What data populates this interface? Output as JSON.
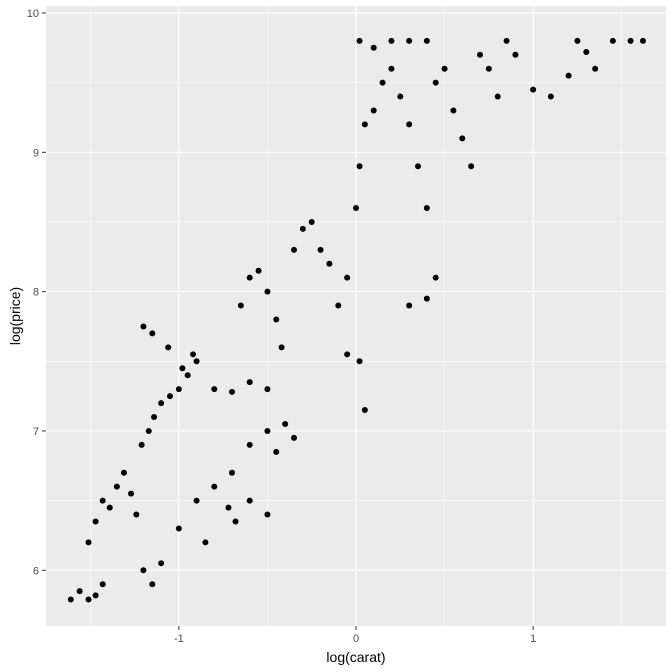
{
  "chart_data": {
    "type": "scatter",
    "title": "",
    "xlabel": "log(carat)",
    "ylabel": "log(price)",
    "xlim": [
      -1.75,
      1.75
    ],
    "ylim": [
      5.6,
      10.05
    ],
    "x_ticks": [
      -1,
      0,
      1
    ],
    "x_tick_labels": [
      "-1",
      "0",
      "1"
    ],
    "y_ticks": [
      6,
      7,
      8,
      9,
      10
    ],
    "y_tick_labels": [
      "6",
      "7",
      "8",
      "9",
      "10"
    ],
    "grid": true,
    "colors": {
      "panel": "#EBEBEB",
      "grid": "#FFFFFF",
      "point": "#000000"
    },
    "series": [
      {
        "points": [
          [
            -1.61,
            5.79
          ],
          [
            -1.56,
            5.85
          ],
          [
            -1.51,
            5.79
          ],
          [
            -1.47,
            5.82
          ],
          [
            -1.43,
            5.9
          ],
          [
            -1.51,
            6.2
          ],
          [
            -1.47,
            6.35
          ],
          [
            -1.43,
            6.5
          ],
          [
            -1.39,
            6.45
          ],
          [
            -1.35,
            6.6
          ],
          [
            -1.31,
            6.7
          ],
          [
            -1.27,
            6.55
          ],
          [
            -1.24,
            6.4
          ],
          [
            -1.21,
            6.9
          ],
          [
            -1.17,
            7.0
          ],
          [
            -1.14,
            7.1
          ],
          [
            -1.1,
            7.2
          ],
          [
            -1.05,
            7.25
          ],
          [
            -1.0,
            7.3
          ],
          [
            -0.95,
            7.4
          ],
          [
            -0.9,
            7.5
          ],
          [
            -0.8,
            7.3
          ],
          [
            -0.7,
            7.28
          ],
          [
            -0.6,
            7.35
          ],
          [
            -0.5,
            7.3
          ],
          [
            -1.2,
            6.0
          ],
          [
            -1.15,
            5.9
          ],
          [
            -1.1,
            6.05
          ],
          [
            -1.0,
            6.3
          ],
          [
            -0.9,
            6.5
          ],
          [
            -0.8,
            6.6
          ],
          [
            -0.7,
            6.7
          ],
          [
            -0.6,
            6.9
          ],
          [
            -0.5,
            7.0
          ],
          [
            -0.45,
            6.85
          ],
          [
            -0.92,
            7.55
          ],
          [
            -0.98,
            7.45
          ],
          [
            -1.06,
            7.6
          ],
          [
            -1.2,
            7.75
          ],
          [
            -1.15,
            7.7
          ],
          [
            -0.65,
            7.9
          ],
          [
            -0.6,
            8.1
          ],
          [
            -0.55,
            8.15
          ],
          [
            -0.5,
            8.0
          ],
          [
            -0.45,
            7.8
          ],
          [
            -0.42,
            7.6
          ],
          [
            -0.35,
            8.3
          ],
          [
            -0.3,
            8.45
          ],
          [
            -0.25,
            8.5
          ],
          [
            -0.2,
            8.3
          ],
          [
            -0.15,
            8.2
          ],
          [
            -0.1,
            7.9
          ],
          [
            -0.05,
            8.1
          ],
          [
            0.0,
            8.6
          ],
          [
            0.02,
            8.9
          ],
          [
            0.05,
            9.2
          ],
          [
            0.1,
            9.3
          ],
          [
            0.15,
            9.5
          ],
          [
            0.2,
            9.6
          ],
          [
            0.25,
            9.4
          ],
          [
            0.3,
            9.2
          ],
          [
            0.35,
            8.9
          ],
          [
            0.4,
            8.6
          ],
          [
            0.02,
            9.8
          ],
          [
            0.1,
            9.75
          ],
          [
            0.2,
            9.8
          ],
          [
            0.3,
            9.8
          ],
          [
            0.4,
            9.8
          ],
          [
            0.45,
            9.5
          ],
          [
            0.5,
            9.6
          ],
          [
            0.55,
            9.3
          ],
          [
            0.6,
            9.1
          ],
          [
            0.65,
            8.9
          ],
          [
            0.7,
            9.7
          ],
          [
            0.75,
            9.6
          ],
          [
            0.8,
            9.4
          ],
          [
            0.85,
            9.8
          ],
          [
            0.9,
            9.7
          ],
          [
            1.0,
            9.45
          ],
          [
            1.1,
            9.4
          ],
          [
            1.25,
            9.8
          ],
          [
            1.35,
            9.6
          ],
          [
            1.45,
            9.8
          ],
          [
            1.55,
            9.8
          ],
          [
            1.62,
            9.8
          ],
          [
            1.2,
            9.55
          ],
          [
            1.3,
            9.72
          ],
          [
            -0.05,
            7.55
          ],
          [
            0.02,
            7.5
          ],
          [
            0.05,
            7.15
          ],
          [
            0.3,
            7.9
          ],
          [
            0.4,
            7.95
          ],
          [
            0.45,
            8.1
          ],
          [
            -0.5,
            6.4
          ],
          [
            -0.6,
            6.5
          ],
          [
            -0.68,
            6.35
          ],
          [
            -0.72,
            6.45
          ],
          [
            -0.35,
            6.95
          ],
          [
            -0.4,
            7.05
          ],
          [
            -0.85,
            6.2
          ]
        ]
      }
    ]
  }
}
